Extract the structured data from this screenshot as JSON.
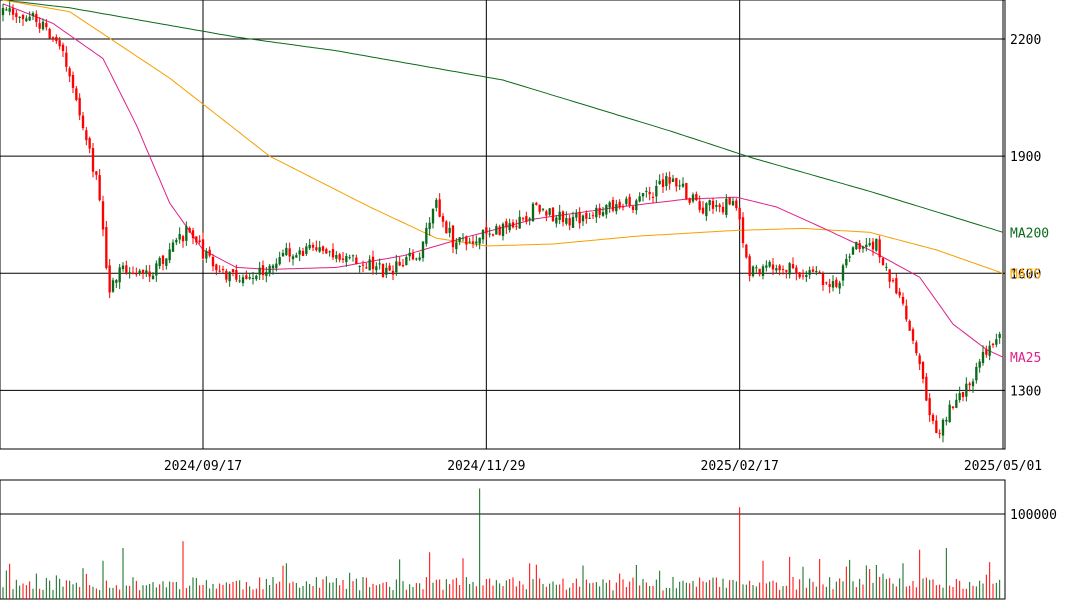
{
  "colors": {
    "up": "#0a6a1a",
    "down": "#ff0000",
    "ma25": "#e0208a",
    "ma75": "#f5a000",
    "ma200": "#0a6a1a",
    "grid": "#000000",
    "background": "#ffffff"
  },
  "chart_data": [
    {
      "type": "candlestick",
      "title": "",
      "ylim": [
        1150,
        2300
      ],
      "y_ticks": [
        "2200",
        "1900",
        "1600",
        "1300"
      ],
      "y_tick_values": [
        2200,
        1900,
        1600,
        1300
      ],
      "x_ticks": [
        "2024/09/17",
        "2024/11/29",
        "2025/02/17",
        "2025/05/01"
      ],
      "x_tick_index": [
        60,
        145,
        221,
        300
      ],
      "num_bars": 300,
      "series": [
        {
          "name": "MA25",
          "label": "MA25",
          "color": "#e0208a"
        },
        {
          "name": "MA75",
          "label": "MA75",
          "color": "#f5a000"
        },
        {
          "name": "MA200",
          "label": "MA200",
          "color": "#0a6a1a"
        }
      ],
      "ma200_anchors": [
        [
          0,
          2300
        ],
        [
          20,
          2280
        ],
        [
          70,
          2205
        ],
        [
          100,
          2170
        ],
        [
          150,
          2095
        ],
        [
          200,
          1965
        ],
        [
          225,
          1895
        ],
        [
          260,
          1810
        ],
        [
          300,
          1705
        ]
      ],
      "ma75_anchors": [
        [
          0,
          2300
        ],
        [
          20,
          2270
        ],
        [
          50,
          2100
        ],
        [
          80,
          1900
        ],
        [
          110,
          1770
        ],
        [
          130,
          1690
        ],
        [
          145,
          1670
        ],
        [
          165,
          1675
        ],
        [
          190,
          1695
        ],
        [
          220,
          1710
        ],
        [
          240,
          1715
        ],
        [
          260,
          1705
        ],
        [
          280,
          1660
        ],
        [
          300,
          1600
        ]
      ],
      "ma25_anchors": [
        [
          0,
          2290
        ],
        [
          15,
          2240
        ],
        [
          30,
          2150
        ],
        [
          40,
          1980
        ],
        [
          50,
          1780
        ],
        [
          60,
          1660
        ],
        [
          70,
          1615
        ],
        [
          80,
          1610
        ],
        [
          100,
          1615
        ],
        [
          120,
          1645
        ],
        [
          140,
          1695
        ],
        [
          160,
          1740
        ],
        [
          185,
          1770
        ],
        [
          205,
          1790
        ],
        [
          220,
          1795
        ],
        [
          232,
          1770
        ],
        [
          245,
          1720
        ],
        [
          260,
          1660
        ],
        [
          275,
          1590
        ],
        [
          285,
          1470
        ],
        [
          295,
          1405
        ],
        [
          300,
          1385
        ]
      ],
      "price_anchors": [
        [
          0,
          2265
        ],
        [
          10,
          2250
        ],
        [
          17,
          2170
        ],
        [
          20,
          2120
        ],
        [
          28,
          1840
        ],
        [
          32,
          1560
        ],
        [
          35,
          1620
        ],
        [
          45,
          1600
        ],
        [
          55,
          1710
        ],
        [
          65,
          1600
        ],
        [
          75,
          1590
        ],
        [
          85,
          1650
        ],
        [
          95,
          1660
        ],
        [
          105,
          1640
        ],
        [
          115,
          1600
        ],
        [
          125,
          1650
        ],
        [
          130,
          1780
        ],
        [
          135,
          1680
        ],
        [
          145,
          1700
        ],
        [
          155,
          1730
        ],
        [
          160,
          1770
        ],
        [
          170,
          1730
        ],
        [
          180,
          1770
        ],
        [
          190,
          1780
        ],
        [
          200,
          1840
        ],
        [
          210,
          1770
        ],
        [
          220,
          1775
        ],
        [
          224,
          1600
        ],
        [
          230,
          1630
        ],
        [
          240,
          1600
        ],
        [
          250,
          1575
        ],
        [
          255,
          1660
        ],
        [
          262,
          1680
        ],
        [
          265,
          1600
        ],
        [
          270,
          1530
        ],
        [
          275,
          1360
        ],
        [
          280,
          1180
        ],
        [
          284,
          1260
        ],
        [
          290,
          1320
        ],
        [
          295,
          1400
        ],
        [
          300,
          1440
        ]
      ],
      "price_noise": 35,
      "random_seed": 7
    },
    {
      "type": "bar",
      "title": "",
      "ylim": [
        0,
        140000
      ],
      "y_ticks": [
        "100000"
      ],
      "y_tick_values": [
        100000
      ],
      "spikes": [
        [
          30,
          45000
        ],
        [
          36,
          60000
        ],
        [
          54,
          68000
        ],
        [
          85,
          42000
        ],
        [
          128,
          55000
        ],
        [
          138,
          48000
        ],
        [
          143,
          130000
        ],
        [
          158,
          42000
        ],
        [
          190,
          40000
        ],
        [
          221,
          108000
        ],
        [
          228,
          45000
        ],
        [
          240,
          38000
        ],
        [
          254,
          46000
        ],
        [
          262,
          40000
        ],
        [
          270,
          42000
        ],
        [
          275,
          58000
        ],
        [
          283,
          60000
        ]
      ],
      "base_volume": 18000,
      "volume_noise": 16000,
      "random_seed": 11
    }
  ]
}
